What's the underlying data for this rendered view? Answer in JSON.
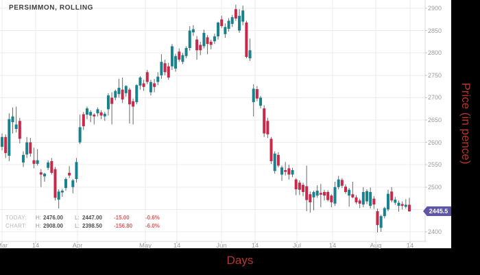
{
  "title": "PERSIMMON, ROLLING",
  "price_badge": "2445.5",
  "info_panel": {
    "rows": [
      {
        "label": "TODAY:",
        "high_label": "H:",
        "high": "2476.00",
        "low_label": "L:",
        "low": "2447.00",
        "change": "-15.00",
        "change_pct": "-0.6%"
      },
      {
        "label": "CHART:",
        "high_label": "H:",
        "high": "2908.00",
        "low_label": "L:",
        "low": "2398.50",
        "change": "-156.80",
        "change_pct": "-6.0%"
      }
    ]
  },
  "colors": {
    "up_candle": "#17828e",
    "down_candle": "#c8294a",
    "wick": "#666666",
    "grid": "#ebebeb",
    "axis_line": "#d9d9d9",
    "tick": "#c4c4c4",
    "axis_text": "#9b9b9b",
    "badge_bg": "#5d56a7",
    "axis_title_red": "#b5362d",
    "frame_bg": "#000000"
  },
  "chart_data": {
    "type": "candlestick",
    "title": "PERSIMMON, ROLLING",
    "xlabel": "Days",
    "ylabel": "Price (in pence)",
    "series_name": "PERSIMMON, ROLLING",
    "last_price": 2445.5,
    "chart_high": 2908.0,
    "chart_low": 2398.5,
    "today_high": 2476.0,
    "today_low": 2447.0,
    "ylim": [
      2380,
      2918
    ],
    "grid": true,
    "y_ticks": [
      {
        "value": 2900,
        "label": "2900"
      },
      {
        "value": 2850,
        "label": "2850"
      },
      {
        "value": 2800,
        "label": "2800"
      },
      {
        "value": 2750,
        "label": "2750"
      },
      {
        "value": 2700,
        "label": "2700"
      },
      {
        "value": 2650,
        "label": "2650"
      },
      {
        "value": 2600,
        "label": "2600"
      },
      {
        "value": 2550,
        "label": "2550"
      },
      {
        "value": 2500,
        "label": "2500"
      },
      {
        "value": 2450,
        "label": ""
      },
      {
        "value": 2400,
        "label": "2400"
      }
    ],
    "x_ticks": [
      {
        "label": "Mar",
        "x": 3
      },
      {
        "label": "14",
        "x": 52
      },
      {
        "label": "Apr",
        "x": 113
      },
      {
        "label": "May",
        "x": 212
      },
      {
        "label": "14",
        "x": 258
      },
      {
        "label": "Jun",
        "x": 323
      },
      {
        "label": "14",
        "x": 372
      },
      {
        "label": "Jul",
        "x": 433
      },
      {
        "label": "14",
        "x": 485
      },
      {
        "label": "Aug",
        "x": 548
      },
      {
        "label": "14",
        "x": 598
      }
    ],
    "candles_format": [
      "open",
      "high",
      "low",
      "close"
    ],
    "candles": [
      [
        2590,
        2620,
        2582,
        2612
      ],
      [
        2612,
        2618,
        2565,
        2576
      ],
      [
        2570,
        2665,
        2558,
        2652
      ],
      [
        2645,
        2678,
        2620,
        2658
      ],
      [
        2630,
        2680,
        2622,
        2640
      ],
      [
        2648,
        2655,
        2598,
        2608
      ],
      [
        2555,
        2580,
        2545,
        2572
      ],
      [
        2573,
        2612,
        2565,
        2600
      ],
      [
        2600,
        2610,
        2568,
        2575
      ],
      [
        2560,
        2588,
        2542,
        2552
      ],
      [
        2552,
        2585,
        2548,
        2560
      ],
      [
        2533,
        2540,
        2500,
        2528
      ],
      [
        2524,
        2532,
        2512,
        2530
      ],
      [
        2543,
        2560,
        2538,
        2555
      ],
      [
        2558,
        2565,
        2528,
        2532
      ],
      [
        2540,
        2545,
        2470,
        2476
      ],
      [
        2472,
        2495,
        2452,
        2490
      ],
      [
        2488,
        2496,
        2478,
        2492
      ],
      [
        2498,
        2522,
        2492,
        2518
      ],
      [
        2532,
        2547,
        2520,
        2526
      ],
      [
        2500,
        2518,
        2486,
        2515
      ],
      [
        2518,
        2565,
        2510,
        2556
      ],
      [
        2600,
        2662,
        2596,
        2634
      ],
      [
        2663,
        2668,
        2628,
        2636
      ],
      [
        2662,
        2680,
        2652,
        2676
      ],
      [
        2660,
        2672,
        2645,
        2668
      ],
      [
        2662,
        2665,
        2640,
        2658
      ],
      [
        2665,
        2678,
        2658,
        2674
      ],
      [
        2667,
        2672,
        2652,
        2660
      ],
      [
        2658,
        2668,
        2648,
        2664
      ],
      [
        2674,
        2710,
        2660,
        2705
      ],
      [
        2700,
        2712,
        2640,
        2686
      ],
      [
        2700,
        2718,
        2694,
        2715
      ],
      [
        2708,
        2742,
        2700,
        2722
      ],
      [
        2718,
        2745,
        2688,
        2696
      ],
      [
        2710,
        2728,
        2702,
        2726
      ],
      [
        2718,
        2722,
        2642,
        2685
      ],
      [
        2692,
        2698,
        2640,
        2680
      ],
      [
        2690,
        2730,
        2685,
        2728
      ],
      [
        2727,
        2748,
        2718,
        2745
      ],
      [
        2732,
        2740,
        2715,
        2724
      ],
      [
        2757,
        2762,
        2730,
        2735
      ],
      [
        2712,
        2740,
        2705,
        2735
      ],
      [
        2732,
        2742,
        2712,
        2724
      ],
      [
        2735,
        2757,
        2728,
        2747
      ],
      [
        2750,
        2797,
        2742,
        2780
      ],
      [
        2777,
        2785,
        2750,
        2757
      ],
      [
        2770,
        2778,
        2740,
        2745
      ],
      [
        2770,
        2820,
        2762,
        2815
      ],
      [
        2765,
        2798,
        2758,
        2793
      ],
      [
        2803,
        2810,
        2780,
        2785
      ],
      [
        2780,
        2800,
        2775,
        2795
      ],
      [
        2793,
        2815,
        2788,
        2811
      ],
      [
        2811,
        2860,
        2805,
        2850
      ],
      [
        2846,
        2862,
        2838,
        2853
      ],
      [
        2830,
        2838,
        2785,
        2806
      ],
      [
        2818,
        2825,
        2795,
        2806
      ],
      [
        2815,
        2852,
        2810,
        2845
      ],
      [
        2835,
        2840,
        2797,
        2820
      ],
      [
        2825,
        2830,
        2808,
        2818
      ],
      [
        2826,
        2843,
        2820,
        2837
      ],
      [
        2837,
        2870,
        2830,
        2868
      ],
      [
        2875,
        2883,
        2856,
        2860
      ],
      [
        2842,
        2866,
        2834,
        2858
      ],
      [
        2854,
        2878,
        2848,
        2872
      ],
      [
        2865,
        2885,
        2858,
        2880
      ],
      [
        2898,
        2908,
        2872,
        2877
      ],
      [
        2850,
        2898,
        2845,
        2883
      ],
      [
        2870,
        2906,
        2862,
        2895
      ],
      [
        2868,
        2872,
        2788,
        2791
      ],
      [
        2788,
        2832,
        2782,
        2806
      ],
      [
        2690,
        2730,
        2658,
        2720
      ],
      [
        2719,
        2726,
        2692,
        2698
      ],
      [
        2682,
        2704,
        2676,
        2700
      ],
      [
        2676,
        2683,
        2612,
        2620
      ],
      [
        2648,
        2655,
        2610,
        2618
      ],
      [
        2608,
        2612,
        2552,
        2558
      ],
      [
        2536,
        2580,
        2530,
        2575
      ],
      [
        2572,
        2578,
        2544,
        2548
      ],
      [
        2528,
        2548,
        2514,
        2544
      ],
      [
        2538,
        2556,
        2526,
        2534
      ],
      [
        2542,
        2550,
        2517,
        2528
      ],
      [
        2528,
        2543,
        2522,
        2538
      ],
      [
        2517,
        2520,
        2482,
        2495
      ],
      [
        2510,
        2515,
        2482,
        2494
      ],
      [
        2505,
        2510,
        2480,
        2489
      ],
      [
        2502,
        2548,
        2446,
        2471
      ],
      [
        2484,
        2490,
        2443,
        2466
      ],
      [
        2477,
        2492,
        2448,
        2489
      ],
      [
        2481,
        2504,
        2476,
        2492
      ],
      [
        2487,
        2507,
        2455,
        2483
      ],
      [
        2489,
        2494,
        2470,
        2481
      ],
      [
        2489,
        2493,
        2468,
        2471
      ],
      [
        2481,
        2484,
        2455,
        2466
      ],
      [
        2463,
        2512,
        2458,
        2500
      ],
      [
        2500,
        2525,
        2495,
        2517
      ],
      [
        2516,
        2520,
        2498,
        2503
      ],
      [
        2501,
        2506,
        2485,
        2489
      ],
      [
        2481,
        2498,
        2456,
        2494
      ],
      [
        2484,
        2512,
        2475,
        2477
      ],
      [
        2477,
        2482,
        2462,
        2466
      ],
      [
        2470,
        2474,
        2453,
        2463
      ],
      [
        2461,
        2500,
        2455,
        2489
      ],
      [
        2468,
        2495,
        2462,
        2491
      ],
      [
        2458,
        2499,
        2452,
        2489
      ],
      [
        2474,
        2480,
        2451,
        2461
      ],
      [
        2446,
        2452,
        2398.5,
        2415
      ],
      [
        2409,
        2438,
        2400,
        2435
      ],
      [
        2435,
        2456,
        2430,
        2453
      ],
      [
        2450,
        2494,
        2446,
        2485
      ],
      [
        2490,
        2500,
        2466,
        2470
      ],
      [
        2465,
        2478,
        2460,
        2472
      ],
      [
        2458,
        2470,
        2445,
        2465
      ],
      [
        2462,
        2468,
        2450,
        2458
      ],
      [
        2456,
        2473,
        2452,
        2460.5
      ],
      [
        2460.5,
        2476,
        2447,
        2445.5
      ]
    ]
  }
}
